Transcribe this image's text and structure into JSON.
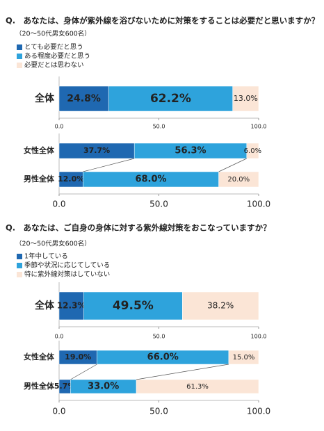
{
  "chart_data": [
    {
      "type": "bar",
      "stacked": true,
      "title": "Q.　あなたは、身体が紫外線を浴びないために対策をすることは必要だと思いますか？",
      "subtitle": "（20～50代男女600名）",
      "categories": [
        "全体"
      ],
      "series": [
        {
          "name": "とても必要だと思う",
          "color": "#1f68b1",
          "values": [
            24.8
          ],
          "value_labels": [
            "24.8%"
          ]
        },
        {
          "name": "ある程度必要だと思う",
          "color": "#2ea3dc",
          "values": [
            62.2
          ],
          "value_labels": [
            "62.2%"
          ]
        },
        {
          "name": "必要だとは思わない",
          "color": "#fbe5d6",
          "values": [
            13.0
          ],
          "value_labels": [
            "13.0%"
          ]
        }
      ],
      "xlim": [
        0,
        100
      ],
      "xticks": [
        {
          "value": 0,
          "label": "0.0"
        },
        {
          "value": 50,
          "label": "50.0"
        },
        {
          "value": 100,
          "label": "100.0"
        }
      ]
    },
    {
      "type": "bar",
      "stacked": true,
      "categories": [
        "女性全体",
        "男性全体"
      ],
      "series": [
        {
          "color": "#1f68b1",
          "values": [
            37.7,
            12.0
          ],
          "value_labels": [
            "37.7%",
            "12.0%"
          ]
        },
        {
          "color": "#2ea3dc",
          "values": [
            56.3,
            68.0
          ],
          "value_labels": [
            "56.3%",
            "68.0%"
          ]
        },
        {
          "color": "#fbe5d6",
          "values": [
            6.0,
            20.0
          ],
          "value_labels": [
            "6.0%",
            "20.0%"
          ]
        }
      ],
      "xlim": [
        0,
        100
      ],
      "xticks": [
        {
          "value": 0,
          "label": "0.0"
        },
        {
          "value": 50,
          "label": "50.0"
        },
        {
          "value": 100,
          "label": "100.0"
        }
      ]
    },
    {
      "type": "bar",
      "stacked": true,
      "title": "Q.　あなたは、ご自身の身体に対する紫外線対策をおこなっていますか？",
      "subtitle": "（20～50代男女600名）",
      "categories": [
        "全体"
      ],
      "series": [
        {
          "name": "1年中している",
          "color": "#1f68b1",
          "values": [
            12.3
          ],
          "value_labels": [
            "12.3%"
          ]
        },
        {
          "name": "季節や状況に応じてしている",
          "color": "#2ea3dc",
          "values": [
            49.5
          ],
          "value_labels": [
            "49.5%"
          ]
        },
        {
          "name": "特に紫外線対策はしていない",
          "color": "#fbe5d6",
          "values": [
            38.2
          ],
          "value_labels": [
            "38.2%"
          ]
        }
      ],
      "xlim": [
        0,
        100
      ],
      "xticks": [
        {
          "value": 0,
          "label": "0.0"
        },
        {
          "value": 50,
          "label": "50.0"
        },
        {
          "value": 100,
          "label": "100.0"
        }
      ]
    },
    {
      "type": "bar",
      "stacked": true,
      "categories": [
        "女性全体",
        "男性全体"
      ],
      "series": [
        {
          "color": "#1f68b1",
          "values": [
            19.0,
            5.7
          ],
          "value_labels": [
            "19.0%",
            "5.7%"
          ]
        },
        {
          "color": "#2ea3dc",
          "values": [
            66.0,
            33.0
          ],
          "value_labels": [
            "66.0%",
            "33.0%"
          ]
        },
        {
          "color": "#fbe5d6",
          "values": [
            15.0,
            61.3
          ],
          "value_labels": [
            "15.0%",
            "61.3%"
          ]
        }
      ],
      "xlim": [
        0,
        100
      ],
      "xticks": [
        {
          "value": 0,
          "label": "0.0"
        },
        {
          "value": 50,
          "label": "50.0"
        },
        {
          "value": 100,
          "label": "100.0"
        }
      ]
    }
  ]
}
